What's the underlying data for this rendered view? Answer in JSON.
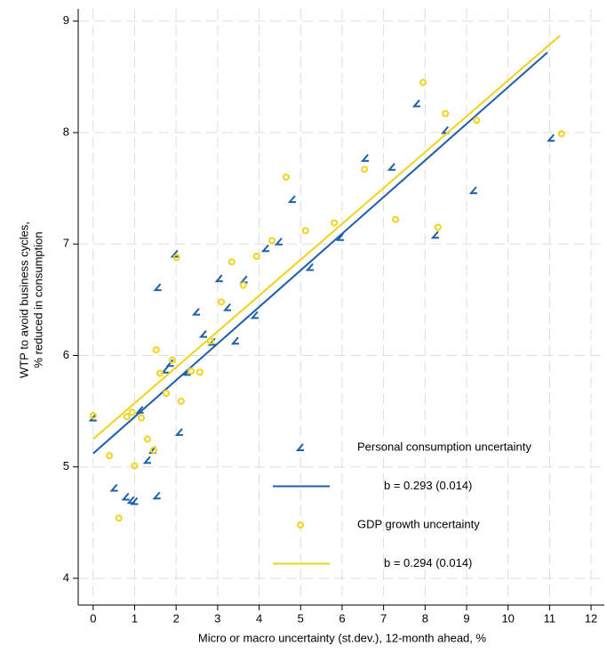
{
  "chart_data": {
    "type": "scatter",
    "xlabel": "Micro or macro uncertainty (st.dev.), 12-month ahead, %",
    "ylabel": [
      "WTP to avoid business cycles,",
      "% reduced in consumption"
    ],
    "xlim": [
      -0.36,
      12.32
    ],
    "ylim": [
      3.76,
      9.11
    ],
    "xticks": [
      0,
      1,
      2,
      3,
      4,
      5,
      6,
      7,
      8,
      9,
      10,
      11,
      12
    ],
    "yticks": [
      4,
      5,
      6,
      7,
      8,
      9
    ],
    "grid": true,
    "series": [
      {
        "name": "Personal consumption uncertainty",
        "type": "scatter",
        "marker": "chevron",
        "color": "#1f5fa8",
        "x": [
          0,
          0.51,
          0.79,
          0.92,
          1.0,
          1.13,
          1.31,
          1.44,
          1.54,
          1.56,
          1.74,
          1.86,
          1.97,
          2.08,
          2.27,
          2.49,
          2.66,
          2.87,
          3.04,
          3.24,
          3.43,
          3.64,
          3.9,
          4.16,
          4.48,
          4.8,
          5.23,
          5.96,
          6.56,
          7.2,
          7.8,
          8.25,
          8.49,
          9.17,
          11.04
        ],
        "values": [
          5.44,
          4.81,
          4.73,
          4.7,
          4.69,
          5.51,
          5.06,
          5.15,
          4.74,
          6.61,
          5.87,
          5.93,
          6.91,
          5.31,
          5.85,
          6.39,
          6.19,
          6.12,
          6.69,
          6.43,
          6.13,
          6.68,
          6.36,
          6.96,
          7.02,
          7.4,
          6.79,
          7.06,
          7.77,
          7.69,
          8.26,
          7.08,
          8.02,
          7.48,
          7.95
        ]
      },
      {
        "name": "b = 0.293 (0.014)",
        "type": "line",
        "color": "#1f5fa8",
        "x": [
          0,
          10.95
        ],
        "values": [
          5.12,
          8.72
        ]
      },
      {
        "name": "GDP growth uncertainty",
        "type": "scatter",
        "marker": "circle",
        "color": "#f2d21b",
        "x": [
          0,
          0.39,
          0.62,
          0.81,
          0.94,
          1.0,
          1.16,
          1.31,
          1.46,
          1.52,
          1.61,
          1.76,
          1.91,
          2.01,
          2.12,
          2.36,
          2.57,
          2.83,
          3.09,
          3.34,
          3.62,
          3.94,
          4.31,
          4.65,
          5.12,
          5.81,
          6.54,
          7.29,
          7.95,
          8.31,
          8.49,
          9.24,
          11.29
        ],
        "values": [
          5.46,
          5.1,
          4.54,
          5.45,
          5.49,
          5.01,
          5.44,
          5.25,
          5.15,
          6.05,
          5.84,
          5.66,
          5.96,
          6.88,
          5.59,
          5.86,
          5.85,
          6.13,
          6.48,
          6.84,
          6.63,
          6.89,
          7.03,
          7.6,
          7.12,
          7.19,
          7.67,
          7.22,
          8.45,
          7.15,
          8.17,
          8.11,
          7.99
        ]
      },
      {
        "name": "b = 0.294 (0.014)",
        "type": "line",
        "color": "#f2d21b",
        "x": [
          0,
          11.25
        ],
        "values": [
          5.25,
          8.87
        ]
      }
    ]
  }
}
